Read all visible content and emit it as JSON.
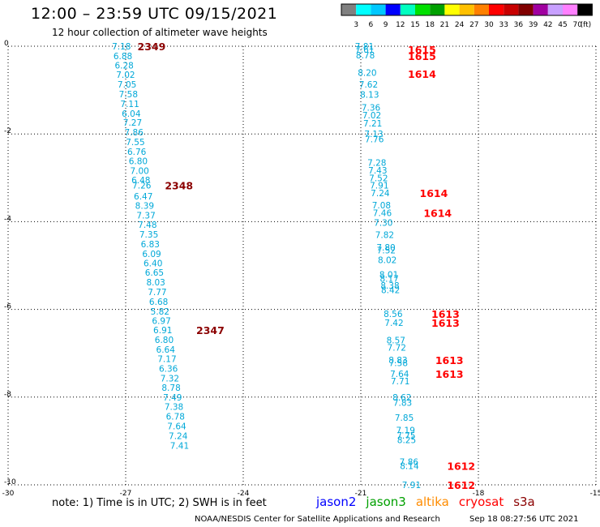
{
  "header": {
    "title": "12:00 – 23:59 UTC 09/15/2021",
    "subtitle": "12 hour collection of altimeter wave heights"
  },
  "colorbar": {
    "colors": [
      "#808080",
      "#00ffff",
      "#00c8ff",
      "#0000ff",
      "#00ffc0",
      "#00e000",
      "#00a000",
      "#ffff00",
      "#ffc000",
      "#ff8000",
      "#ff0000",
      "#c80000",
      "#800000",
      "#a000a0",
      "#c8a0ff",
      "#ff80ff",
      "#000000"
    ],
    "labels": [
      "3",
      "6",
      "9",
      "12",
      "15",
      "18",
      "21",
      "24",
      "27",
      "30",
      "33",
      "36",
      "39",
      "42",
      "45",
      "70",
      "(ft)"
    ]
  },
  "axes": {
    "x_ticks": [
      "-30",
      "-27",
      "-24",
      "-21",
      "-18",
      "-15"
    ],
    "y_ticks": [
      "0",
      "-2",
      "-4",
      "-6",
      "-8",
      "-10"
    ]
  },
  "track_left": {
    "color": "#00a8d8",
    "points": [
      [
        "7.18",
        0.0
      ],
      [
        "6.88",
        -0.22
      ],
      [
        "6.28",
        -0.43
      ],
      [
        "7.02",
        -0.65
      ],
      [
        "7.05",
        -0.87
      ],
      [
        "7.58",
        -1.09
      ],
      [
        "7.11",
        -1.31
      ],
      [
        "6.04",
        -1.53
      ],
      [
        "7.27",
        -1.74
      ],
      [
        "7.86",
        -1.96
      ],
      [
        "7.55",
        -2.18
      ],
      [
        "6.76",
        -2.4
      ],
      [
        "6.80",
        -2.62
      ],
      [
        "7.00",
        -2.84
      ],
      [
        "6.48",
        -3.05
      ],
      [
        "7.26",
        -3.17
      ],
      [
        "6.47",
        -3.42
      ],
      [
        "8.39",
        -3.63
      ],
      [
        "7.37",
        -3.85
      ],
      [
        "7.48",
        -4.07
      ],
      [
        "7.35",
        -4.29
      ],
      [
        "6.83",
        -4.51
      ],
      [
        "6.09",
        -4.73
      ],
      [
        "6.40",
        -4.94
      ],
      [
        "6.65",
        -5.16
      ],
      [
        "8.03",
        -5.38
      ],
      [
        "7.77",
        -5.6
      ],
      [
        "6.68",
        -5.82
      ],
      [
        "5.82",
        -6.04
      ],
      [
        "6.97",
        -6.26
      ],
      [
        "6.91",
        -6.47
      ],
      [
        "6.80",
        -6.69
      ],
      [
        "6.64",
        -6.91
      ],
      [
        "7.17",
        -7.13
      ],
      [
        "6.36",
        -7.35
      ],
      [
        "7.32",
        -7.57
      ],
      [
        "8.78",
        -7.78
      ],
      [
        "7.49",
        -8.0
      ],
      [
        "7.38",
        -8.22
      ],
      [
        "6.78",
        -8.44
      ],
      [
        "7.64",
        -8.66
      ],
      [
        "7.24",
        -8.88
      ],
      [
        "7.41",
        -9.1
      ]
    ],
    "time_labels": [
      {
        "text": "2349",
        "x": -26.7,
        "y": 0.0
      },
      {
        "text": "2348",
        "x": -26.0,
        "y": -3.17
      },
      {
        "text": "2347",
        "x": -25.2,
        "y": -6.47
      }
    ],
    "time_color": "#8b0000"
  },
  "track_right": {
    "color": "#00a8d8",
    "points": [
      [
        "7.81",
        0.0
      ],
      [
        "7.61",
        -0.07
      ],
      [
        "8.78",
        -0.2
      ],
      [
        "8.20",
        -0.6
      ],
      [
        "7.62",
        -0.87
      ],
      [
        "8.13",
        -1.1
      ],
      [
        "7.36",
        -1.4
      ],
      [
        "7.02",
        -1.57
      ],
      [
        "7.21",
        -1.76
      ],
      [
        "7.13",
        -2.0
      ],
      [
        "7.76",
        -2.12
      ],
      [
        "7.28",
        -2.65
      ],
      [
        "7.43",
        -2.83
      ],
      [
        "7.52",
        -3.0
      ],
      [
        "7.91",
        -3.17
      ],
      [
        "7.24",
        -3.35
      ],
      [
        "7.08",
        -3.62
      ],
      [
        "7.46",
        -3.8
      ],
      [
        "7.30",
        -4.02
      ],
      [
        "7.82",
        -4.3
      ],
      [
        "7.80",
        -4.58
      ],
      [
        "7.52",
        -4.65
      ],
      [
        "8.02",
        -4.87
      ],
      [
        "8.01",
        -5.2
      ],
      [
        "8.17",
        -5.3
      ],
      [
        "8.38",
        -5.45
      ],
      [
        "8.42",
        -5.55
      ],
      [
        "8.56",
        -6.1
      ],
      [
        "7.42",
        -6.3
      ],
      [
        "8.57",
        -6.7
      ],
      [
        "7.72",
        -6.87
      ],
      [
        "8.83",
        -7.15
      ],
      [
        "7.58",
        -7.22
      ],
      [
        "7.64",
        -7.47
      ],
      [
        "7.71",
        -7.63
      ],
      [
        "8.62",
        -8.0
      ],
      [
        "7.83",
        -8.12
      ],
      [
        "7.85",
        -8.47
      ],
      [
        "7.19",
        -8.75
      ],
      [
        "7.75",
        -8.87
      ],
      [
        "8.25",
        -8.97
      ],
      [
        "7.86",
        -9.47
      ],
      [
        "8.14",
        -9.57
      ],
      [
        "7.91",
        -10.0
      ]
    ],
    "time_labels": [
      {
        "text": "1615",
        "x": -19.8,
        "y": -0.07
      },
      {
        "text": "1615",
        "x": -19.8,
        "y": -0.22
      },
      {
        "text": "1614",
        "x": -19.8,
        "y": -0.63
      },
      {
        "text": "1614",
        "x": -19.5,
        "y": -3.35
      },
      {
        "text": "1614",
        "x": -19.4,
        "y": -3.8
      },
      {
        "text": "1613",
        "x": -19.2,
        "y": -6.1
      },
      {
        "text": "1613",
        "x": -19.2,
        "y": -6.3
      },
      {
        "text": "1613",
        "x": -19.1,
        "y": -7.15
      },
      {
        "text": "1613",
        "x": -19.1,
        "y": -7.47
      },
      {
        "text": "1612",
        "x": -18.8,
        "y": -9.57
      },
      {
        "text": "1612",
        "x": -18.8,
        "y": -10.0
      }
    ],
    "time_color": "#ff0000"
  },
  "footer": {
    "note": "note:  1) Time is in UTC;  2) SWH is in feet",
    "legend": [
      {
        "label": "jason2",
        "color": "#0000ff"
      },
      {
        "label": "jason3",
        "color": "#00a000"
      },
      {
        "label": "altika",
        "color": "#ff8c00"
      },
      {
        "label": "cryosat",
        "color": "#ff0000"
      },
      {
        "label": "s3a",
        "color": "#8b0000"
      }
    ],
    "credit": "NOAA/NESDIS Center for Satellite Applications and Research",
    "timestamp": "Sep 18 08:27:56 UTC 2021"
  }
}
